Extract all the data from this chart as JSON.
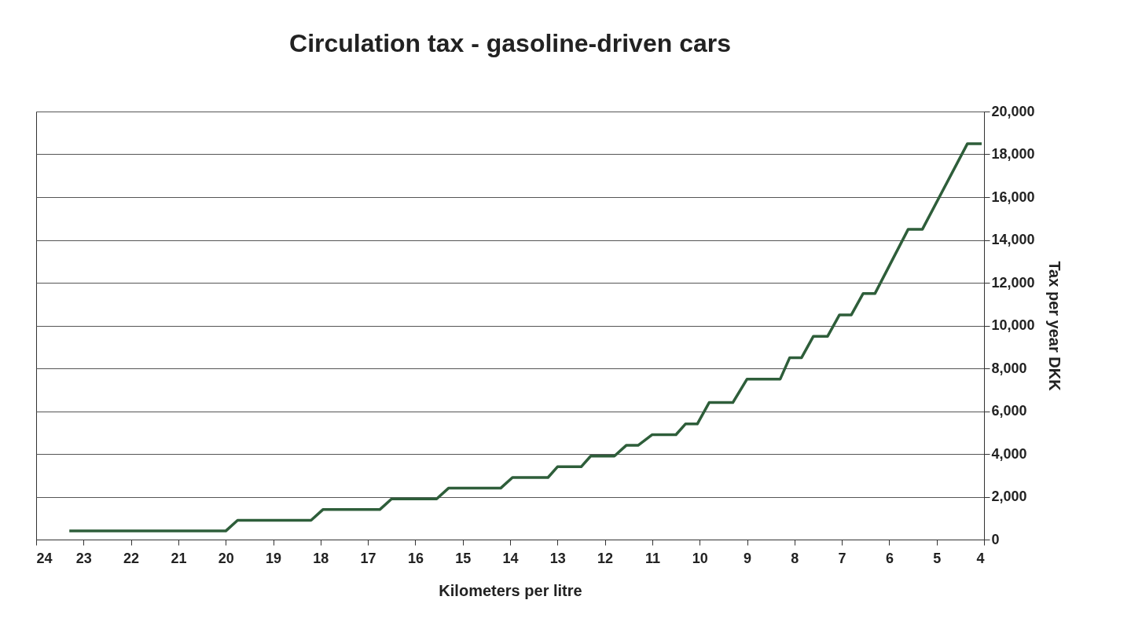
{
  "chart_data": {
    "type": "line",
    "title": "Circulation tax - gasoline-driven cars",
    "xlabel": "Kilometers per litre",
    "ylabel": "Tax per year DKK",
    "xlim": [
      24,
      4
    ],
    "xticks": [
      24,
      23,
      22,
      21,
      20,
      19,
      18,
      17,
      16,
      15,
      14,
      13,
      12,
      11,
      10,
      9,
      8,
      7,
      6,
      5,
      4
    ],
    "ylim": [
      0,
      20000
    ],
    "yticks": [
      {
        "value": 0,
        "label": "0"
      },
      {
        "value": 2000,
        "label": "2,000"
      },
      {
        "value": 4000,
        "label": "4,000"
      },
      {
        "value": 6000,
        "label": "6,000"
      },
      {
        "value": 8000,
        "label": "8,000"
      },
      {
        "value": 10000,
        "label": "10,000"
      },
      {
        "value": 12000,
        "label": "12,000"
      },
      {
        "value": 14000,
        "label": "14,000"
      },
      {
        "value": 16000,
        "label": "16,000"
      },
      {
        "value": 18000,
        "label": "18,000"
      },
      {
        "value": 20000,
        "label": "20,000"
      }
    ],
    "grid": "y",
    "series": [
      {
        "color": "#2e5e3a",
        "x": [
          23.3,
          20.0,
          19.75,
          18.2,
          17.95,
          16.75,
          16.5,
          15.55,
          15.3,
          14.2,
          13.95,
          13.2,
          13.0,
          12.5,
          12.3,
          11.8,
          11.55,
          11.3,
          11.0,
          10.5,
          10.3,
          10.05,
          9.8,
          9.3,
          9.0,
          8.3,
          8.1,
          7.85,
          7.6,
          7.3,
          7.05,
          6.8,
          6.55,
          6.3,
          5.6,
          5.3,
          4.35,
          4.05
        ],
        "values": [
          400,
          400,
          900,
          900,
          1400,
          1400,
          1900,
          1900,
          2400,
          2400,
          2900,
          2900,
          3400,
          3400,
          3900,
          3900,
          4400,
          4400,
          4900,
          4900,
          5400,
          5400,
          6400,
          6400,
          7500,
          7500,
          8500,
          8500,
          9500,
          9500,
          10500,
          10500,
          11500,
          11500,
          14500,
          14500,
          18500,
          18500
        ]
      }
    ]
  }
}
